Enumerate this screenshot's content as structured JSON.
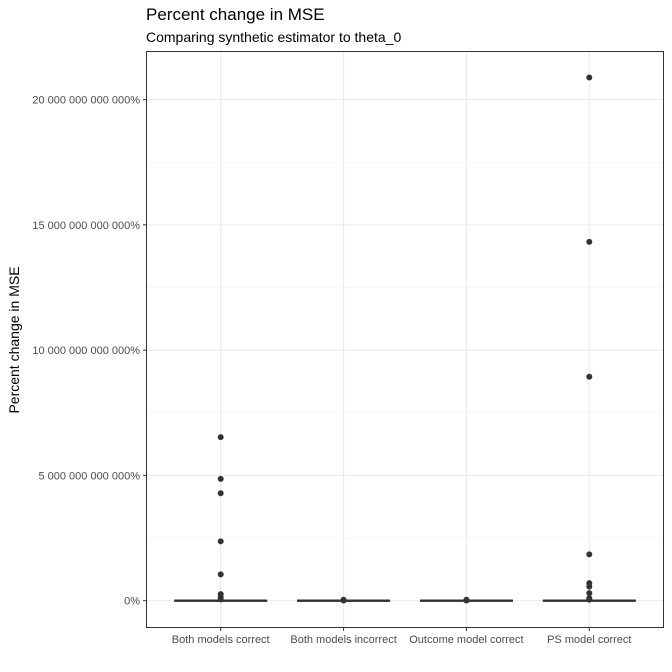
{
  "chart_data": {
    "type": "boxplot",
    "title": "Percent change in MSE",
    "subtitle": "Comparing synthetic estimator to theta_0",
    "ylabel": "Percent change in MSE",
    "xlabel": "",
    "categories": [
      "Both models correct",
      "Both models incorrect",
      "Outcome model correct",
      "PS model correct"
    ],
    "y_ticks": [
      0,
      5000000000000,
      10000000000000,
      15000000000000,
      20000000000000
    ],
    "y_tick_labels": [
      "0%",
      "5 000 000 000 000%",
      "10 000 000 000 000%",
      "15 000 000 000 000%",
      "20 000 000 000 000%"
    ],
    "ylim": [
      -1050000000000,
      21900000000000
    ],
    "grid": true,
    "series": [
      {
        "category": "Both models correct",
        "box": {
          "q1": 0,
          "median": 0,
          "q3": 0
        },
        "outliers": [
          6530000000000,
          4860000000000,
          4290000000000,
          2370000000000,
          1050000000000,
          260000000000,
          130000000000,
          50000000000
        ]
      },
      {
        "category": "Both models incorrect",
        "box": {
          "q1": 0,
          "median": 0,
          "q3": 0
        },
        "outliers": [
          40000000000,
          10000000000
        ]
      },
      {
        "category": "Outcome model correct",
        "box": {
          "q1": 0,
          "median": 0,
          "q3": 0
        },
        "outliers": [
          40000000000,
          10000000000
        ]
      },
      {
        "category": "PS model correct",
        "box": {
          "q1": 0,
          "median": 0,
          "q3": 0
        },
        "outliers": [
          20880000000000,
          14320000000000,
          8940000000000,
          1850000000000,
          700000000000,
          560000000000,
          300000000000,
          100000000000,
          40000000000
        ]
      }
    ]
  }
}
